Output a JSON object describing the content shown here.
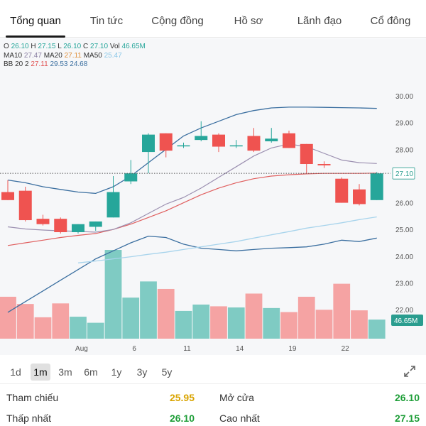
{
  "tabs": [
    {
      "label": "Tổng quan",
      "active": true
    },
    {
      "label": "Tin tức",
      "active": false
    },
    {
      "label": "Cộng đồng",
      "active": false
    },
    {
      "label": "Hồ sơ",
      "active": false
    },
    {
      "label": "Lãnh đạo",
      "active": false
    },
    {
      "label": "Cổ đông",
      "active": false
    }
  ],
  "legend": {
    "o_label": "O",
    "o": "26.10",
    "h_label": "H",
    "h": "27.15",
    "l_label": "L",
    "l": "26.10",
    "c_label": "C",
    "c": "27.10",
    "vol_label": "Vol",
    "vol": "46.65M",
    "ma10_label": "MA10",
    "ma10": "27.47",
    "ma20_label": "MA20",
    "ma20": "27.11",
    "ma50_label": "MA50",
    "ma50": "25.47",
    "bb_label": "BB 20 2",
    "bb_mid": "27.11",
    "bb_up": "29.53",
    "bb_low": "24.68"
  },
  "colors": {
    "up": "#26a69a",
    "down": "#ef5350",
    "up_vol": "#7fcbc3",
    "down_vol": "#f5a3a3",
    "ma10": "#9b8fb0",
    "ma20": "#e06060",
    "ma50": "#a8d4ec",
    "bb": "#3b6fa0",
    "current": "#2a9d8f",
    "ref_value": "#d9a400",
    "green_value": "#1e9e38"
  },
  "chart_data": {
    "type": "candlestick",
    "x_labels": [
      "Aug",
      "6",
      "11",
      "14",
      "19",
      "22"
    ],
    "y_ticks": [
      "30.00",
      "29.00",
      "28.00",
      "27.00",
      "26.00",
      "25.00",
      "24.00",
      "23.00",
      "22.00"
    ],
    "ylim": [
      21.1,
      31.25
    ],
    "last_price": "27.10",
    "last_volume": "46.65M",
    "candles": [
      {
        "o": 26.4,
        "h": 26.85,
        "l": 26.1,
        "c": 26.1
      },
      {
        "o": 26.45,
        "h": 26.6,
        "l": 25.3,
        "c": 25.35
      },
      {
        "o": 25.4,
        "h": 25.55,
        "l": 25.15,
        "c": 25.2
      },
      {
        "o": 25.4,
        "h": 25.45,
        "l": 24.85,
        "c": 24.9
      },
      {
        "o": 24.9,
        "h": 25.2,
        "l": 24.85,
        "c": 25.2
      },
      {
        "o": 25.1,
        "h": 25.3,
        "l": 24.95,
        "c": 25.3
      },
      {
        "o": 25.45,
        "h": 27.0,
        "l": 25.45,
        "c": 26.4
      },
      {
        "o": 26.8,
        "h": 27.6,
        "l": 26.7,
        "c": 27.1
      },
      {
        "o": 27.9,
        "h": 28.6,
        "l": 27.1,
        "c": 28.55
      },
      {
        "o": 28.6,
        "h": 28.6,
        "l": 27.7,
        "c": 27.95
      },
      {
        "o": 28.15,
        "h": 28.25,
        "l": 28.05,
        "c": 28.15
      },
      {
        "o": 28.35,
        "h": 29.05,
        "l": 28.3,
        "c": 28.5
      },
      {
        "o": 28.55,
        "h": 28.6,
        "l": 27.9,
        "c": 28.1
      },
      {
        "o": 28.15,
        "h": 28.35,
        "l": 28.05,
        "c": 28.15
      },
      {
        "o": 28.5,
        "h": 28.8,
        "l": 27.9,
        "c": 27.95
      },
      {
        "o": 28.3,
        "h": 28.8,
        "l": 28.25,
        "c": 28.4
      },
      {
        "o": 28.6,
        "h": 28.7,
        "l": 28.05,
        "c": 28.05
      },
      {
        "o": 28.2,
        "h": 28.2,
        "l": 27.1,
        "c": 27.45
      },
      {
        "o": 27.45,
        "h": 27.55,
        "l": 27.3,
        "c": 27.4
      },
      {
        "o": 26.9,
        "h": 26.95,
        "l": 26.0,
        "c": 26.0
      },
      {
        "o": 26.5,
        "h": 26.7,
        "l": 25.9,
        "c": 25.95
      },
      {
        "o": 26.1,
        "h": 27.15,
        "l": 26.1,
        "c": 27.1
      }
    ],
    "volumes": [
      1.45,
      1.2,
      0.74,
      1.22,
      0.76,
      0.55,
      3.07,
      1.42,
      1.98,
      1.72,
      0.96,
      1.18,
      1.12,
      1.08,
      1.56,
      1.06,
      0.92,
      1.45,
      1.0,
      1.9,
      0.98,
      0.66
    ],
    "ma10": [
      25.1,
      25.02,
      24.98,
      24.95,
      24.93,
      24.9,
      25.0,
      25.25,
      25.6,
      25.95,
      26.2,
      26.55,
      26.95,
      27.35,
      27.75,
      28.05,
      28.2,
      28.1,
      27.85,
      27.6,
      27.5,
      27.47
    ],
    "ma20": [
      24.4,
      24.5,
      24.6,
      24.7,
      24.78,
      24.85,
      25.0,
      25.2,
      25.45,
      25.7,
      26.0,
      26.3,
      26.55,
      26.75,
      26.9,
      27.0,
      27.05,
      27.08,
      27.1,
      27.1,
      27.1,
      27.11
    ],
    "ma50": [
      null,
      null,
      null,
      null,
      23.75,
      23.82,
      23.9,
      23.98,
      24.07,
      24.15,
      24.25,
      24.35,
      24.45,
      24.55,
      24.68,
      24.8,
      24.92,
      25.05,
      25.15,
      25.25,
      25.37,
      25.47
    ],
    "bb_upper": [
      26.85,
      26.75,
      26.6,
      26.5,
      26.4,
      26.35,
      26.6,
      27.0,
      27.5,
      28.0,
      28.5,
      28.8,
      29.05,
      29.3,
      29.45,
      29.55,
      29.58,
      29.58,
      29.57,
      29.56,
      29.55,
      29.53
    ],
    "bb_lower": [
      21.9,
      22.3,
      22.7,
      23.1,
      23.5,
      23.9,
      24.2,
      24.5,
      24.75,
      24.7,
      24.45,
      24.3,
      24.25,
      24.2,
      24.25,
      24.3,
      24.32,
      24.35,
      24.45,
      24.6,
      24.55,
      24.68
    ],
    "grid": false
  },
  "ranges": [
    {
      "label": "1d",
      "active": false
    },
    {
      "label": "1m",
      "active": true
    },
    {
      "label": "3m",
      "active": false
    },
    {
      "label": "6m",
      "active": false
    },
    {
      "label": "1y",
      "active": false
    },
    {
      "label": "3y",
      "active": false
    },
    {
      "label": "5y",
      "active": false
    }
  ],
  "stats": {
    "ref_label": "Tham chiếu",
    "ref_value": "25.95",
    "open_label": "Mở cửa",
    "open_value": "26.10",
    "low_label": "Thấp nhất",
    "low_value": "26.10",
    "high_label": "Cao nhất",
    "high_value": "27.15"
  },
  "icons": {
    "expand": "expand-icon"
  }
}
